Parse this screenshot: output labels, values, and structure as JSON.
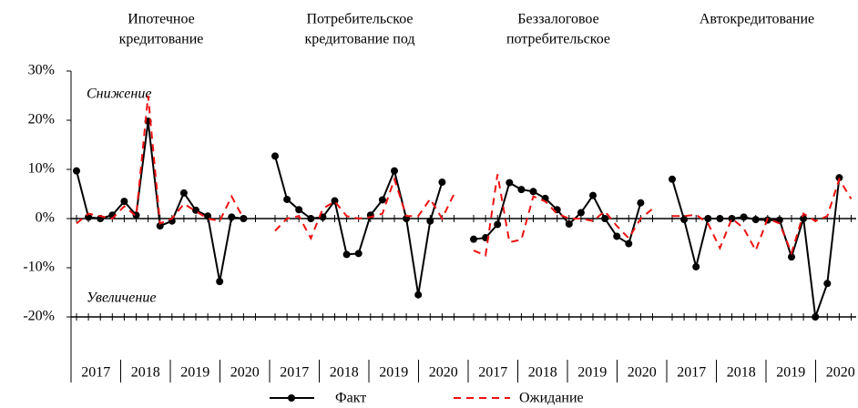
{
  "chart_data": [
    {
      "type": "line",
      "title": [
        "Ипотечное",
        "кредитование"
      ],
      "groups": [
        "2017",
        "2018",
        "2019",
        "2020"
      ],
      "series": [
        {
          "name": "Факт",
          "color": "#000000",
          "values": [
            9.7,
            0.3,
            0,
            0.7,
            3.5,
            0.7,
            19.8,
            -1.5,
            -0.5,
            5.2,
            1.7,
            0.5,
            -12.8,
            0.3,
            0,
            null
          ]
        },
        {
          "name": "Ожидание",
          "color": "#ee1111",
          "values": [
            -1,
            1,
            0.5,
            0,
            2.5,
            0.5,
            25,
            -1,
            0,
            3,
            1.5,
            0,
            -0.5,
            4.5,
            0,
            null
          ]
        }
      ]
    },
    {
      "type": "line",
      "title": [
        "Потребительское",
        "кредитование под"
      ],
      "groups": [
        "2017",
        "2018",
        "2019",
        "2020"
      ],
      "series": [
        {
          "color": "#000000",
          "values": [
            12.7,
            3.9,
            1.8,
            0,
            0.3,
            3.6,
            -7.3,
            -7.1,
            0.7,
            3.8,
            9.7,
            0,
            -15.5,
            -0.5,
            7.4,
            null
          ]
        },
        {
          "color": "#ee1111",
          "values": [
            -2.5,
            0,
            0.5,
            -4,
            2,
            3.5,
            0.5,
            0,
            0.3,
            1,
            8,
            0.5,
            0.5,
            4,
            0,
            5
          ]
        }
      ]
    },
    {
      "type": "line",
      "title": [
        "Беззалоговое",
        "потребительское"
      ],
      "groups": [
        "2017",
        "2018",
        "2019",
        "2020"
      ],
      "series": [
        {
          "color": "#000000",
          "values": [
            -4.2,
            -3.9,
            -1.2,
            7.3,
            5.9,
            5.5,
            4.1,
            1.8,
            -1.1,
            1.2,
            4.7,
            0,
            -3.6,
            -5.1,
            3.2,
            null
          ]
        },
        {
          "color": "#ee1111",
          "values": [
            -6.5,
            -7.5,
            9,
            -4.8,
            -4.3,
            4.5,
            3.5,
            1,
            0,
            0,
            -0.5,
            1.5,
            -1.5,
            -4,
            0,
            2
          ]
        }
      ]
    },
    {
      "type": "line",
      "title": [
        "Автокредитование"
      ],
      "groups": [
        "2017",
        "2018",
        "2019",
        "2020"
      ],
      "series": [
        {
          "color": "#000000",
          "values": [
            8,
            -0.2,
            -9.8,
            0,
            0,
            0,
            0.3,
            -0.2,
            -0.3,
            -0.3,
            -7.8,
            0,
            -20,
            -13.2,
            8.3,
            null
          ]
        },
        {
          "color": "#ee1111",
          "values": [
            0.5,
            0.5,
            0.8,
            -1,
            -6,
            0,
            -2,
            -6.5,
            0,
            -1,
            -7,
            1,
            -0.5,
            0.5,
            8,
            4
          ]
        }
      ]
    }
  ],
  "y_axis": {
    "ylim": [
      -20,
      30
    ],
    "yticks": [
      {
        "value": -20,
        "label": "-20%"
      },
      {
        "value": -10,
        "label": "-10%"
      },
      {
        "value": 0,
        "label": "0%"
      },
      {
        "value": 10,
        "label": "10%"
      },
      {
        "value": 20,
        "label": "20%"
      },
      {
        "value": 30,
        "label": "30%"
      }
    ]
  },
  "annotations": [
    "Снижение",
    "Увеличение"
  ]
}
